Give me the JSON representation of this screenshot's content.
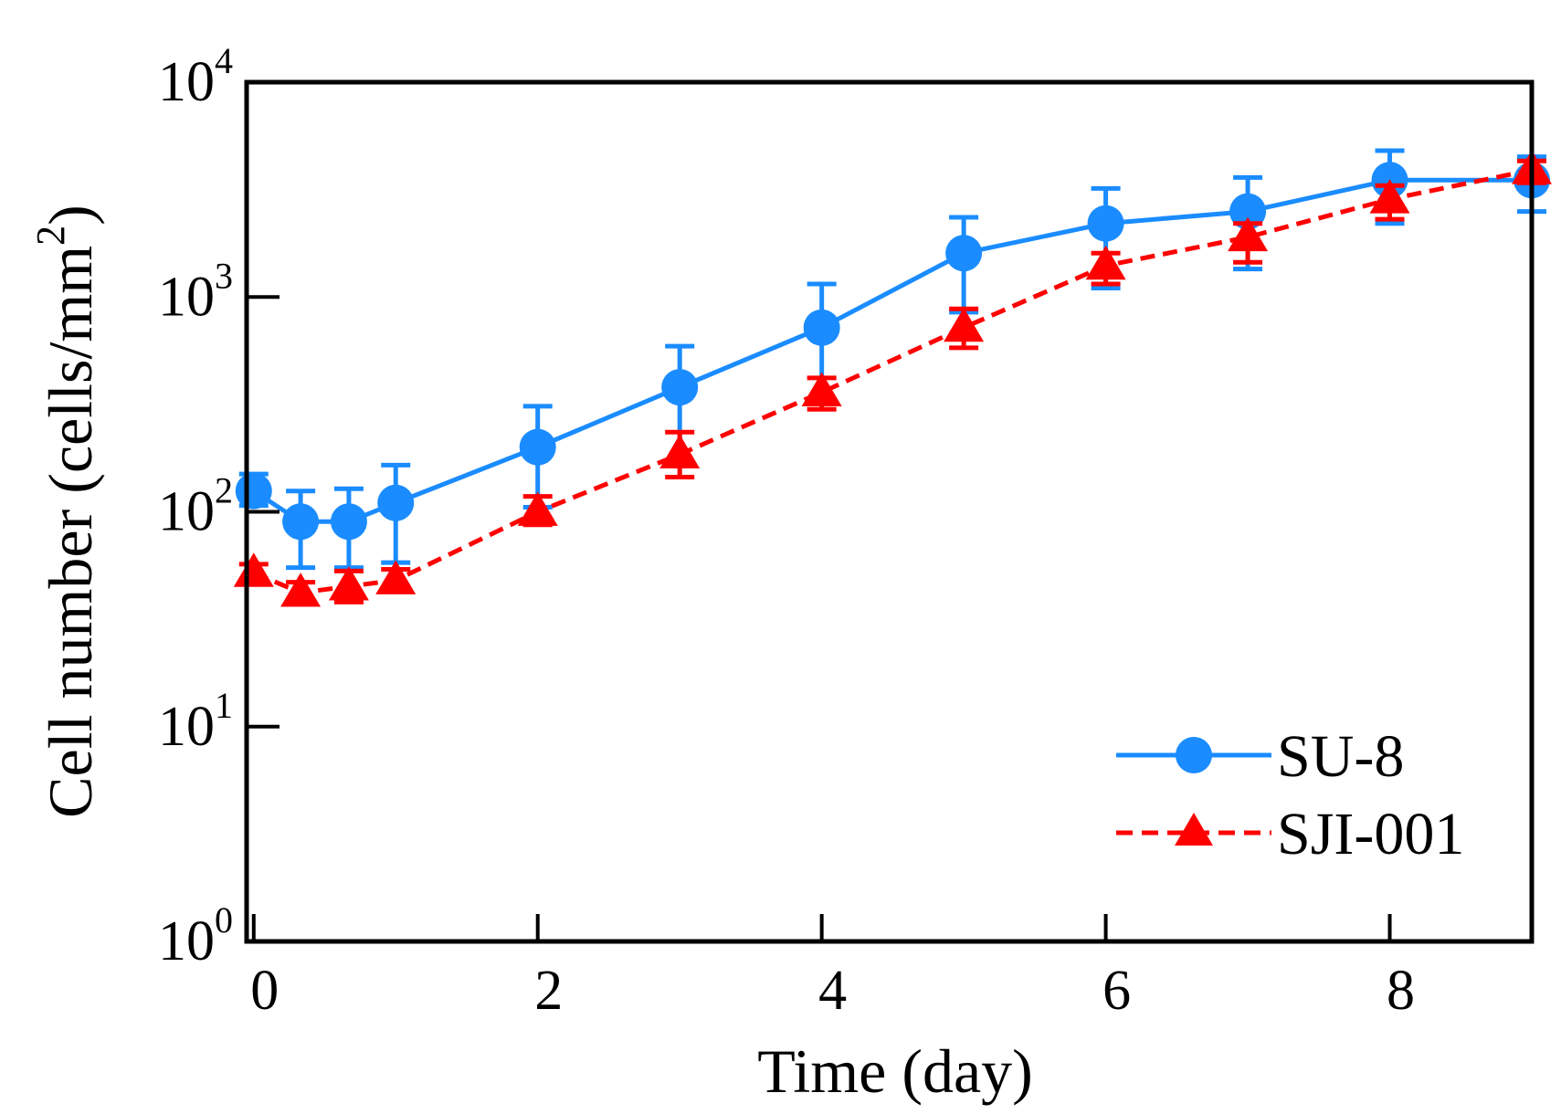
{
  "chart_data": {
    "type": "line",
    "xlabel": "Time (day)",
    "ylabel": {
      "text": "Cell number (cells/mm",
      "superscript": "2",
      "close": ")"
    },
    "yscale": "log",
    "xlim": [
      -0.05,
      9
    ],
    "ylim": [
      1,
      10000
    ],
    "x_ticks": [
      {
        "value": 0,
        "label": "0"
      },
      {
        "value": 2,
        "label": "2"
      },
      {
        "value": 4,
        "label": "4"
      },
      {
        "value": 6,
        "label": "6"
      },
      {
        "value": 8,
        "label": "8"
      }
    ],
    "y_ticks": [
      {
        "value": 1,
        "base": "10",
        "exp": "0"
      },
      {
        "value": 10,
        "base": "10",
        "exp": "1"
      },
      {
        "value": 100,
        "base": "10",
        "exp": "2"
      },
      {
        "value": 1000,
        "base": "10",
        "exp": "3"
      },
      {
        "value": 10000,
        "base": "10",
        "exp": "4"
      }
    ],
    "legend_position": "bottom-right",
    "series": [
      {
        "name": "SU-8",
        "color": "#1a8cff",
        "line_style": "solid",
        "marker": "circle",
        "x": [
          0,
          0.33,
          0.67,
          1,
          2,
          3,
          4,
          5,
          6,
          7,
          8,
          9
        ],
        "y": [
          125,
          90,
          90,
          110,
          200,
          380,
          720,
          1600,
          2200,
          2500,
          3500,
          3500
        ],
        "err_low": [
          107,
          55,
          55,
          58,
          105,
          165,
          330,
          850,
          1100,
          1350,
          2200,
          2500
        ],
        "err_high": [
          150,
          125,
          128,
          165,
          310,
          590,
          1150,
          2350,
          3200,
          3600,
          4800,
          4500
        ]
      },
      {
        "name": "SJI-001",
        "color": "#ff0000",
        "line_style": "dashed",
        "marker": "triangle",
        "x": [
          0,
          0.33,
          0.67,
          1,
          2,
          3,
          4,
          5,
          6,
          7,
          8,
          9
        ],
        "y": [
          52,
          42,
          45,
          48,
          100,
          185,
          360,
          720,
          1400,
          1900,
          2850,
          3900
        ],
        "err_low": [
          47,
          38,
          38,
          43,
          87,
          145,
          300,
          580,
          1150,
          1450,
          2300,
          3400
        ],
        "err_high": [
          57,
          47,
          53,
          54,
          118,
          235,
          420,
          880,
          1600,
          2200,
          3300,
          4300
        ]
      }
    ]
  }
}
